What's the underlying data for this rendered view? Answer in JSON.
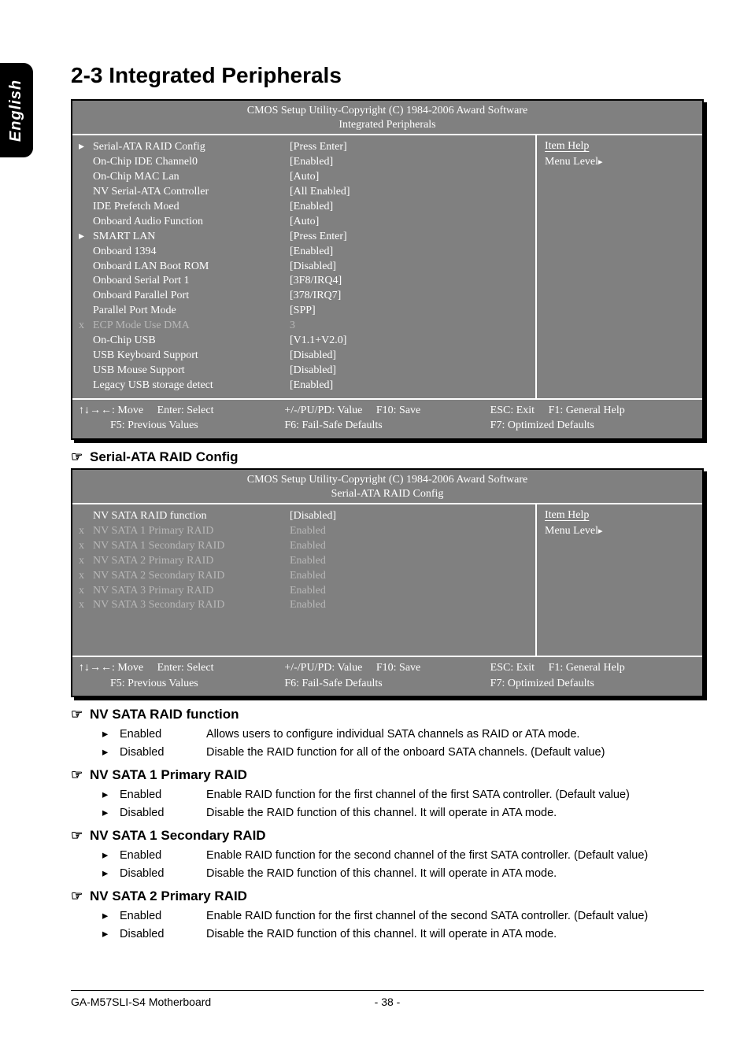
{
  "colors": {
    "bios_bg": "#808080",
    "bios_border": "#000000",
    "bios_text": "#ffffff",
    "bios_dimmed": "#b8b8b8",
    "page_bg": "#ffffff",
    "page_text": "#000000"
  },
  "side_tab": "English",
  "page_title": "2-3    Integrated Peripherals",
  "bios1": {
    "header_line1": "CMOS Setup Utility-Copyright (C) 1984-2006 Award Software",
    "header_line2": "Integrated Peripherals",
    "help_title": "Item Help",
    "menu_level_label": "Menu Level",
    "rows": [
      {
        "marker": "▸",
        "label": "Serial-ATA RAID Config",
        "value": "[Press Enter]",
        "dim": false
      },
      {
        "marker": "",
        "label": "On-Chip IDE Channel0",
        "value": "[Enabled]",
        "dim": false
      },
      {
        "marker": "",
        "label": "On-Chip MAC Lan",
        "value": "[Auto]",
        "dim": false
      },
      {
        "marker": "",
        "label": "NV Serial-ATA Controller",
        "value": "[All Enabled]",
        "dim": false
      },
      {
        "marker": "",
        "label": "IDE Prefetch Moed",
        "value": "[Enabled]",
        "dim": false
      },
      {
        "marker": "",
        "label": "Onboard Audio Function",
        "value": "[Auto]",
        "dim": false
      },
      {
        "marker": "▸",
        "label": "SMART LAN",
        "value": "[Press Enter]",
        "dim": false
      },
      {
        "marker": "",
        "label": "Onboard 1394",
        "value": "[Enabled]",
        "dim": false
      },
      {
        "marker": "",
        "label": "Onboard LAN Boot ROM",
        "value": "[Disabled]",
        "dim": false
      },
      {
        "marker": "",
        "label": "Onboard Serial Port 1",
        "value": "[3F8/IRQ4]",
        "dim": false
      },
      {
        "marker": "",
        "label": "Onboard Parallel Port",
        "value": "[378/IRQ7]",
        "dim": false
      },
      {
        "marker": "",
        "label": "Parallel Port Mode",
        "value": "[SPP]",
        "dim": false
      },
      {
        "marker": "x",
        "label": "ECP Mode Use DMA",
        "value": "3",
        "dim": true
      },
      {
        "marker": "",
        "label": "On-Chip USB",
        "value": "[V1.1+V2.0]",
        "dim": false
      },
      {
        "marker": "",
        "label": "USB Keyboard Support",
        "value": "[Disabled]",
        "dim": false
      },
      {
        "marker": "",
        "label": "USB Mouse Support",
        "value": "[Disabled]",
        "dim": false
      },
      {
        "marker": "",
        "label": "Legacy USB storage detect",
        "value": "[Enabled]",
        "dim": false
      }
    ],
    "footer": {
      "c1a": "↑↓→←: Move",
      "c1b": "Enter: Select",
      "c2a": "+/-/PU/PD: Value",
      "c2b": "F10: Save",
      "c3a": "ESC: Exit",
      "c3b": "F1: General Help",
      "r2a": "F5: Previous Values",
      "r2b": "F6: Fail-Safe Defaults",
      "r2c": "F7: Optimized Defaults"
    }
  },
  "section_raid_title": "Serial-ATA RAID Config",
  "bios2": {
    "header_line1": "CMOS Setup Utility-Copyright (C) 1984-2006 Award Software",
    "header_line2": "Serial-ATA RAID Config",
    "help_title": "Item Help",
    "menu_level_label": "Menu Level",
    "rows": [
      {
        "marker": "",
        "label": "NV SATA RAID function",
        "value": "[Disabled]",
        "dim": false
      },
      {
        "marker": "x",
        "label": "NV SATA 1 Primary RAID",
        "value": "Enabled",
        "dim": true
      },
      {
        "marker": "x",
        "label": "NV SATA 1 Secondary RAID",
        "value": "Enabled",
        "dim": true
      },
      {
        "marker": "x",
        "label": "NV SATA 2 Primary RAID",
        "value": "Enabled",
        "dim": true
      },
      {
        "marker": "x",
        "label": "NV SATA 2 Secondary RAID",
        "value": "Enabled",
        "dim": true
      },
      {
        "marker": "x",
        "label": "NV SATA 3 Primary RAID",
        "value": "Enabled",
        "dim": true
      },
      {
        "marker": "x",
        "label": "NV SATA 3 Secondary RAID",
        "value": "Enabled",
        "dim": true
      }
    ],
    "footer": {
      "c1a": "↑↓→←: Move",
      "c1b": "Enter: Select",
      "c2a": "+/-/PU/PD: Value",
      "c2b": "F10: Save",
      "c3a": "ESC: Exit",
      "c3b": "F1: General Help",
      "r2a": "F5: Previous Values",
      "r2b": "F6: Fail-Safe Defaults",
      "r2c": "F7: Optimized Defaults"
    }
  },
  "sections": [
    {
      "title": "NV SATA RAID function",
      "opts": [
        {
          "name": "Enabled",
          "desc": "Allows users to configure individual SATA channels as RAID or ATA mode."
        },
        {
          "name": "Disabled",
          "desc": "Disable the RAID function for all of the onboard SATA channels. (Default value)"
        }
      ]
    },
    {
      "title": "NV SATA 1 Primary RAID",
      "opts": [
        {
          "name": "Enabled",
          "desc": "Enable RAID function for the first channel of the first SATA controller. (Default value)"
        },
        {
          "name": "Disabled",
          "desc": "Disable the RAID function of this channel. It will operate in ATA mode."
        }
      ]
    },
    {
      "title": "NV SATA 1 Secondary RAID",
      "opts": [
        {
          "name": "Enabled",
          "desc": "Enable RAID function for the second channel of the first SATA controller. (Default value)"
        },
        {
          "name": "Disabled",
          "desc": "Disable the RAID function of this channel. It will operate in ATA mode."
        }
      ]
    },
    {
      "title": "NV SATA 2 Primary RAID",
      "opts": [
        {
          "name": "Enabled",
          "desc": "Enable RAID function for the first channel of the second SATA controller. (Default value)"
        },
        {
          "name": "Disabled",
          "desc": "Disable the RAID function of this channel. It will operate in ATA mode."
        }
      ]
    }
  ],
  "page_footer": {
    "left": "GA-M57SLI-S4 Motherboard",
    "center": "- 38 -"
  }
}
